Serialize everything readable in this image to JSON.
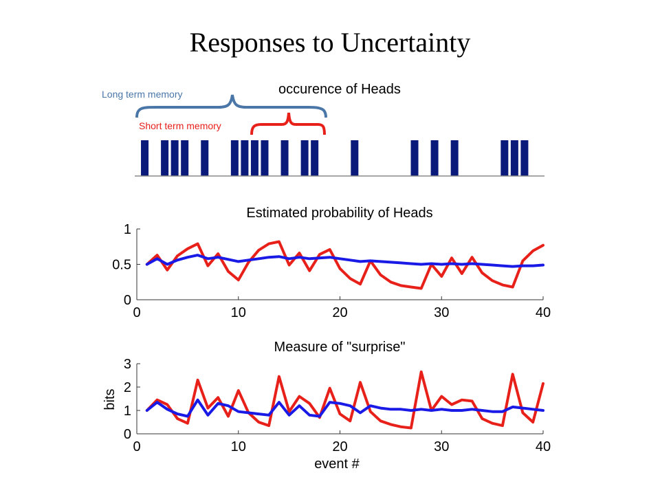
{
  "slide_title": "Responses to Uncertainty",
  "annotations": {
    "long_term": "Long term memory",
    "short_term": "Short term memory",
    "long_term_color": "#4a76a8",
    "short_term_color": "#e8201a"
  },
  "chart_data": [
    {
      "type": "bar",
      "title": "occurence of Heads",
      "bar_color": "#0a1a7a",
      "x": [
        1,
        3,
        4,
        5,
        7,
        10,
        11,
        12,
        13,
        15,
        17,
        18,
        22,
        28,
        30,
        32,
        37,
        38,
        39
      ],
      "xlim": [
        0,
        41
      ]
    },
    {
      "type": "line",
      "title": "Estimated probability of Heads",
      "xlabel": "",
      "ylabel": "",
      "xlim": [
        0,
        40
      ],
      "ylim": [
        0,
        1
      ],
      "xticks": [
        0,
        10,
        20,
        30,
        40
      ],
      "yticks": [
        0,
        0.5,
        1
      ],
      "series": [
        {
          "color": "#e8201a",
          "x": [
            1,
            2,
            3,
            4,
            5,
            6,
            7,
            8,
            9,
            10,
            11,
            12,
            13,
            14,
            15,
            16,
            17,
            18,
            19,
            20,
            21,
            22,
            23,
            24,
            25,
            26,
            27,
            28,
            29,
            30,
            31,
            32,
            33,
            34,
            35,
            36,
            37,
            38,
            39,
            40
          ],
          "values": [
            0.5,
            0.63,
            0.42,
            0.62,
            0.72,
            0.79,
            0.48,
            0.65,
            0.4,
            0.28,
            0.53,
            0.7,
            0.79,
            0.82,
            0.49,
            0.66,
            0.41,
            0.64,
            0.71,
            0.44,
            0.3,
            0.22,
            0.55,
            0.35,
            0.25,
            0.2,
            0.18,
            0.16,
            0.5,
            0.33,
            0.59,
            0.37,
            0.6,
            0.38,
            0.27,
            0.21,
            0.18,
            0.55,
            0.69,
            0.77
          ]
        },
        {
          "color": "#1a1ae6",
          "x": [
            1,
            2,
            3,
            4,
            5,
            6,
            7,
            8,
            9,
            10,
            11,
            12,
            13,
            14,
            15,
            16,
            17,
            18,
            19,
            20,
            21,
            22,
            23,
            24,
            25,
            26,
            27,
            28,
            29,
            30,
            31,
            32,
            33,
            34,
            35,
            36,
            37,
            38,
            39,
            40
          ],
          "values": [
            0.5,
            0.58,
            0.5,
            0.56,
            0.6,
            0.63,
            0.58,
            0.6,
            0.57,
            0.54,
            0.56,
            0.58,
            0.6,
            0.61,
            0.58,
            0.6,
            0.58,
            0.59,
            0.6,
            0.58,
            0.56,
            0.54,
            0.55,
            0.54,
            0.53,
            0.52,
            0.51,
            0.5,
            0.51,
            0.5,
            0.51,
            0.5,
            0.51,
            0.5,
            0.49,
            0.48,
            0.47,
            0.48,
            0.48,
            0.49
          ]
        }
      ]
    },
    {
      "type": "line",
      "title": "Measure of \"surprise\"",
      "xlabel": "event #",
      "ylabel": "bits",
      "xlim": [
        0,
        40
      ],
      "ylim": [
        0,
        3
      ],
      "xticks": [
        0,
        10,
        20,
        30,
        40
      ],
      "yticks": [
        0,
        1,
        2,
        3
      ],
      "series": [
        {
          "color": "#e8201a",
          "x": [
            1,
            2,
            3,
            4,
            5,
            6,
            7,
            8,
            9,
            10,
            11,
            12,
            13,
            14,
            15,
            16,
            17,
            18,
            19,
            20,
            21,
            22,
            23,
            24,
            25,
            26,
            27,
            28,
            29,
            30,
            31,
            32,
            33,
            34,
            35,
            36,
            37,
            38,
            39,
            40
          ],
          "values": [
            1.0,
            1.45,
            1.25,
            0.65,
            0.45,
            2.3,
            1.1,
            1.55,
            0.75,
            1.85,
            0.9,
            0.5,
            0.35,
            2.45,
            0.95,
            1.6,
            1.3,
            0.7,
            1.95,
            0.85,
            0.55,
            2.2,
            0.95,
            0.55,
            0.4,
            0.3,
            0.25,
            2.65,
            1.0,
            1.6,
            1.25,
            1.45,
            1.4,
            0.65,
            0.45,
            0.35,
            2.55,
            0.9,
            0.5,
            2.15
          ]
        },
        {
          "color": "#1a1ae6",
          "x": [
            1,
            2,
            3,
            4,
            5,
            6,
            7,
            8,
            9,
            10,
            11,
            12,
            13,
            14,
            15,
            16,
            17,
            18,
            19,
            20,
            21,
            22,
            23,
            24,
            25,
            26,
            27,
            28,
            29,
            30,
            31,
            32,
            33,
            34,
            35,
            36,
            37,
            38,
            39,
            40
          ],
          "values": [
            1.0,
            1.35,
            1.05,
            0.85,
            0.75,
            1.45,
            0.8,
            1.3,
            1.2,
            0.95,
            0.9,
            0.85,
            0.8,
            1.35,
            0.8,
            1.2,
            0.8,
            0.75,
            1.35,
            1.3,
            1.2,
            0.9,
            1.2,
            1.1,
            1.05,
            1.05,
            1.0,
            1.05,
            1.0,
            1.05,
            1.0,
            1.0,
            1.05,
            1.0,
            0.95,
            0.95,
            1.15,
            1.1,
            1.05,
            1.0
          ]
        }
      ]
    }
  ]
}
